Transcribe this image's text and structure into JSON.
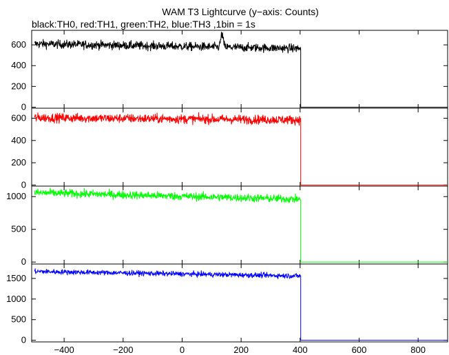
{
  "chart_data": {
    "type": "line",
    "title": "WAM T3 Lightcurve (y−axis: Counts)",
    "subtitle": "black:TH0, red:TH1, green:TH2, blue:TH3 ,1bin = 1s",
    "xlim": [
      -510,
      900
    ],
    "x_ticks": [
      -400,
      -200,
      0,
      200,
      400,
      600,
      800
    ],
    "x_tick_labels": [
      "−400",
      "−200",
      "0",
      "200",
      "400",
      "600",
      "800"
    ],
    "grid": false,
    "panels": [
      {
        "name": "TH0",
        "color": "#000000",
        "ylim": [
          -10,
          740
        ],
        "y_ticks": [
          0,
          200,
          400,
          600
        ],
        "y_tick_labels": [
          "0",
          "200",
          "400",
          "600"
        ],
        "level_start": 610,
        "level_end": 565,
        "noise": 30,
        "flare": {
          "x": 135,
          "peak": 730
        },
        "drop_x": 402,
        "after_level": 0
      },
      {
        "name": "TH1",
        "color": "#ff0000",
        "ylim": [
          -10,
          690
        ],
        "y_ticks": [
          0,
          200,
          400,
          600
        ],
        "y_tick_labels": [
          "0",
          "200",
          "400",
          "600"
        ],
        "level_start": 605,
        "level_end": 585,
        "noise": 30,
        "drop_x": 402,
        "after_level": 0
      },
      {
        "name": "TH2",
        "color": "#00ff00",
        "ylim": [
          -30,
          1160
        ],
        "y_ticks": [
          0,
          500,
          1000
        ],
        "y_tick_labels": [
          "0",
          "500",
          "1000"
        ],
        "level_start": 1060,
        "level_end": 960,
        "noise": 45,
        "drop_x": 402,
        "after_level": 0
      },
      {
        "name": "TH3",
        "color": "#0000ff",
        "ylim": [
          -40,
          1850
        ],
        "y_ticks": [
          0,
          500,
          1000,
          1500
        ],
        "y_tick_labels": [
          "0",
          "500",
          "1000",
          "1500"
        ],
        "level_start": 1670,
        "level_end": 1560,
        "noise": 45,
        "drop_x": 402,
        "after_level": 0
      }
    ]
  }
}
